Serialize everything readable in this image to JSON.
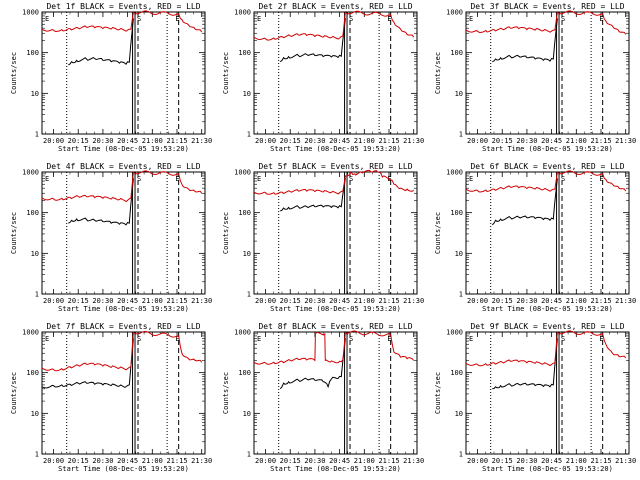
{
  "figure": {
    "background": "#ffffff"
  },
  "chart_data": [
    {
      "type": "line",
      "title": "Det 1f BLACK = Events, RED = LLD",
      "xlabel": "Start Time (08-Dec-05 19:53:20)",
      "ylabel": "Counts/sec",
      "xlim": [
        1193,
        1292
      ],
      "ylim": [
        1,
        1000
      ],
      "yscale": "log",
      "x_tick_labels": [
        "20:00",
        "20:15",
        "20:30",
        "20:45",
        "21:00",
        "21:15",
        "21:30"
      ],
      "x_tick_minutes": [
        1200,
        1215,
        1230,
        1245,
        1260,
        1275,
        1290
      ],
      "y_tick_labels": [
        "1",
        "10",
        "100",
        "1000"
      ],
      "y_tick_values": [
        1,
        10,
        100,
        1000
      ],
      "markers": [
        "E",
        "S",
        "E"
      ],
      "series": [
        {
          "color": "#000000",
          "x": [
            1209,
            1211,
            1214,
            1220,
            1225,
            1230,
            1235,
            1240,
            1244,
            1246,
            1248.5
          ],
          "y": [
            50,
            60,
            65,
            70,
            72,
            65,
            60,
            55,
            52,
            58,
            700
          ]
        },
        {
          "color": "#d00000",
          "x": [
            1193,
            1200,
            1205,
            1210,
            1215,
            1220,
            1225,
            1230,
            1235,
            1240,
            1245,
            1247,
            1248.5,
            1276,
            1278,
            1282,
            1286,
            1290
          ],
          "y": [
            380,
            360,
            370,
            390,
            400,
            420,
            410,
            390,
            380,
            370,
            360,
            380,
            1000,
            900,
            650,
            480,
            380,
            320
          ]
        }
      ]
    },
    {
      "type": "line",
      "title": "Det 2f BLACK = Events, RED = LLD",
      "xlabel": "Start Time (08-Dec-05 19:53:20)",
      "ylabel": "Counts/sec",
      "xlim": [
        1193,
        1292
      ],
      "ylim": [
        1,
        1000
      ],
      "yscale": "log",
      "x_tick_labels": [
        "20:00",
        "20:15",
        "20:30",
        "20:45",
        "21:00",
        "21:15",
        "21:30"
      ],
      "x_tick_minutes": [
        1200,
        1215,
        1230,
        1245,
        1260,
        1275,
        1290
      ],
      "y_tick_labels": [
        "1",
        "10",
        "100",
        "1000"
      ],
      "y_tick_values": [
        1,
        10,
        100,
        1000
      ],
      "markers": [
        "E",
        "S",
        "E"
      ],
      "series": [
        {
          "color": "#000000",
          "x": [
            1209,
            1211,
            1214,
            1220,
            1225,
            1230,
            1235,
            1240,
            1244,
            1246,
            1248.5
          ],
          "y": [
            60,
            75,
            80,
            85,
            90,
            85,
            80,
            78,
            76,
            82,
            700
          ]
        },
        {
          "color": "#d00000",
          "x": [
            1193,
            1200,
            1205,
            1210,
            1215,
            1220,
            1225,
            1230,
            1235,
            1240,
            1245,
            1247,
            1248.5,
            1276,
            1278,
            1282,
            1286,
            1290
          ],
          "y": [
            240,
            220,
            230,
            250,
            260,
            270,
            265,
            250,
            240,
            235,
            230,
            260,
            1000,
            850,
            560,
            380,
            280,
            240
          ]
        }
      ]
    },
    {
      "type": "line",
      "title": "Det 3f BLACK = Events, RED = LLD",
      "xlabel": "Start Time (08-Dec-05 19:53:20)",
      "ylabel": "Counts/sec",
      "xlim": [
        1193,
        1292
      ],
      "ylim": [
        1,
        1000
      ],
      "yscale": "log",
      "x_tick_labels": [
        "20:00",
        "20:15",
        "20:30",
        "20:45",
        "21:00",
        "21:15",
        "21:30"
      ],
      "x_tick_minutes": [
        1200,
        1215,
        1230,
        1245,
        1260,
        1275,
        1290
      ],
      "y_tick_labels": [
        "1",
        "10",
        "100",
        "1000"
      ],
      "y_tick_values": [
        1,
        10,
        100,
        1000
      ],
      "markers": [
        "E",
        "S",
        "E"
      ],
      "series": [
        {
          "color": "#000000",
          "x": [
            1209,
            1211,
            1214,
            1220,
            1225,
            1230,
            1235,
            1240,
            1244,
            1246,
            1248.5
          ],
          "y": [
            60,
            70,
            75,
            80,
            82,
            75,
            70,
            65,
            62,
            70,
            700
          ]
        },
        {
          "color": "#d00000",
          "x": [
            1193,
            1200,
            1205,
            1210,
            1215,
            1220,
            1225,
            1230,
            1235,
            1240,
            1245,
            1247,
            1248.5,
            1276,
            1278,
            1282,
            1286,
            1290
          ],
          "y": [
            360,
            340,
            350,
            370,
            380,
            400,
            390,
            370,
            360,
            350,
            340,
            360,
            1000,
            900,
            600,
            450,
            330,
            280
          ]
        }
      ]
    },
    {
      "type": "line",
      "title": "Det 4f BLACK = Events, RED = LLD",
      "xlabel": "Start Time (08-Dec-05 19:53:20)",
      "ylabel": "Counts/sec",
      "xlim": [
        1193,
        1292
      ],
      "ylim": [
        1,
        1000
      ],
      "yscale": "log",
      "x_tick_labels": [
        "20:00",
        "20:15",
        "20:30",
        "20:45",
        "21:00",
        "21:15",
        "21:30"
      ],
      "x_tick_minutes": [
        1200,
        1215,
        1230,
        1245,
        1260,
        1275,
        1290
      ],
      "y_tick_labels": [
        "1",
        "10",
        "100",
        "1000"
      ],
      "y_tick_values": [
        1,
        10,
        100,
        1000
      ],
      "markers": [
        "E",
        "S",
        "E"
      ],
      "series": [
        {
          "color": "#000000",
          "x": [
            1209,
            1211,
            1214,
            1220,
            1225,
            1230,
            1235,
            1240,
            1244,
            1246,
            1248.5
          ],
          "y": [
            55,
            65,
            70,
            68,
            65,
            60,
            55,
            52,
            50,
            55,
            700
          ]
        },
        {
          "color": "#d00000",
          "x": [
            1193,
            1200,
            1205,
            1210,
            1215,
            1220,
            1225,
            1230,
            1235,
            1240,
            1245,
            1247,
            1248.5,
            1276,
            1278,
            1282,
            1286,
            1290
          ],
          "y": [
            230,
            220,
            225,
            240,
            250,
            245,
            235,
            225,
            215,
            210,
            200,
            230,
            1000,
            900,
            500,
            380,
            330,
            300
          ]
        }
      ]
    },
    {
      "type": "line",
      "title": "Det 5f BLACK = Events, RED = LLD",
      "xlabel": "Start Time (08-Dec-05 19:53:20)",
      "ylabel": "Counts/sec",
      "xlim": [
        1193,
        1292
      ],
      "ylim": [
        1,
        1000
      ],
      "yscale": "log",
      "x_tick_labels": [
        "20:00",
        "20:15",
        "20:30",
        "20:45",
        "21:00",
        "21:15",
        "21:30"
      ],
      "x_tick_minutes": [
        1200,
        1215,
        1230,
        1245,
        1260,
        1275,
        1290
      ],
      "y_tick_labels": [
        "1",
        "10",
        "100",
        "1000"
      ],
      "y_tick_values": [
        1,
        10,
        100,
        1000
      ],
      "markers": [
        "E",
        "S",
        "E"
      ],
      "series": [
        {
          "color": "#000000",
          "x": [
            1209,
            1211,
            1214,
            1220,
            1225,
            1230,
            1235,
            1240,
            1244,
            1246,
            1248.5
          ],
          "y": [
            110,
            130,
            135,
            138,
            140,
            140,
            138,
            135,
            132,
            140,
            700
          ]
        },
        {
          "color": "#d00000",
          "x": [
            1193,
            1200,
            1205,
            1210,
            1215,
            1220,
            1225,
            1230,
            1235,
            1240,
            1245,
            1247,
            1248.5,
            1252,
            1254,
            1258,
            1264,
            1268,
            1269,
            1271,
            1276,
            1278,
            1282,
            1286,
            1290
          ],
          "y": [
            320,
            310,
            310,
            320,
            330,
            340,
            340,
            330,
            320,
            315,
            310,
            340,
            800,
            1000,
            900,
            1000,
            1000,
            1000,
            1000,
            750,
            650,
            500,
            400,
            380,
            360
          ]
        }
      ]
    },
    {
      "type": "line",
      "title": "Det 6f BLACK = Events, RED = LLD",
      "xlabel": "Start Time (08-Dec-05 19:53:20)",
      "ylabel": "Counts/sec",
      "xlim": [
        1193,
        1292
      ],
      "ylim": [
        1,
        1000
      ],
      "yscale": "log",
      "x_tick_labels": [
        "20:00",
        "20:15",
        "20:30",
        "20:45",
        "21:00",
        "21:15",
        "21:30"
      ],
      "x_tick_minutes": [
        1200,
        1215,
        1230,
        1245,
        1260,
        1275,
        1290
      ],
      "y_tick_labels": [
        "1",
        "10",
        "100",
        "1000"
      ],
      "y_tick_values": [
        1,
        10,
        100,
        1000
      ],
      "markers": [
        "E",
        "S",
        "E"
      ],
      "series": [
        {
          "color": "#000000",
          "x": [
            1209,
            1211,
            1214,
            1220,
            1225,
            1230,
            1235,
            1240,
            1244,
            1246,
            1248.5
          ],
          "y": [
            50,
            65,
            70,
            75,
            78,
            75,
            72,
            68,
            65,
            70,
            700
          ]
        },
        {
          "color": "#d00000",
          "x": [
            1193,
            1200,
            1205,
            1210,
            1215,
            1220,
            1225,
            1230,
            1235,
            1240,
            1245,
            1247,
            1248.5,
            1276,
            1278,
            1282,
            1286,
            1290
          ],
          "y": [
            380,
            350,
            360,
            380,
            400,
            420,
            410,
            390,
            380,
            370,
            360,
            380,
            1000,
            900,
            650,
            500,
            400,
            340
          ]
        }
      ]
    },
    {
      "type": "line",
      "title": "Det 7f BLACK = Events, RED = LLD",
      "xlabel": "Start Time (08-Dec-05 19:53:20)",
      "ylabel": "Counts/sec",
      "xlim": [
        1193,
        1292
      ],
      "ylim": [
        1,
        1000
      ],
      "yscale": "log",
      "x_tick_labels": [
        "20:00",
        "20:15",
        "20:30",
        "20:45",
        "21:00",
        "21:15",
        "21:30"
      ],
      "x_tick_minutes": [
        1200,
        1215,
        1230,
        1245,
        1260,
        1275,
        1290
      ],
      "y_tick_labels": [
        "1",
        "10",
        "100",
        "1000"
      ],
      "y_tick_values": [
        1,
        10,
        100,
        1000
      ],
      "markers": [
        "E",
        "S",
        "E"
      ],
      "series": [
        {
          "color": "#000000",
          "x": [
            1193,
            1200,
            1205,
            1210,
            1215,
            1220,
            1225,
            1230,
            1235,
            1240,
            1244,
            1246,
            1248.5
          ],
          "y": [
            45,
            48,
            50,
            52,
            55,
            55,
            52,
            50,
            48,
            47,
            45,
            50,
            700
          ]
        },
        {
          "color": "#d00000",
          "x": [
            1193,
            1200,
            1205,
            1210,
            1215,
            1220,
            1225,
            1230,
            1235,
            1240,
            1245,
            1247,
            1248.5,
            1276,
            1278,
            1282,
            1286,
            1290
          ],
          "y": [
            130,
            120,
            125,
            140,
            150,
            160,
            155,
            145,
            135,
            130,
            125,
            140,
            1000,
            800,
            300,
            220,
            200,
            180
          ]
        }
      ]
    },
    {
      "type": "line",
      "title": "Det 8f BLACK = Events, RED = LLD",
      "xlabel": "Start Time (08-Dec-05 19:53:20)",
      "ylabel": "Counts/sec",
      "xlim": [
        1193,
        1292
      ],
      "ylim": [
        1,
        1000
      ],
      "yscale": "log",
      "x_tick_labels": [
        "20:00",
        "20:15",
        "20:30",
        "20:45",
        "21:00",
        "21:15",
        "21:30"
      ],
      "x_tick_minutes": [
        1200,
        1215,
        1230,
        1245,
        1260,
        1275,
        1290
      ],
      "y_tick_labels": [
        "1",
        "10",
        "100",
        "1000"
      ],
      "y_tick_values": [
        1,
        10,
        100,
        1000
      ],
      "markers": [
        "E",
        "S",
        "E"
      ],
      "series": [
        {
          "color": "#000000",
          "x": [
            1209,
            1211,
            1214,
            1220,
            1225,
            1230,
            1235,
            1238,
            1240,
            1244,
            1246,
            1248.5
          ],
          "y": [
            40,
            55,
            60,
            65,
            70,
            65,
            60,
            45,
            70,
            72,
            80,
            700
          ]
        },
        {
          "color": "#d00000",
          "x": [
            1193,
            1200,
            1205,
            1210,
            1215,
            1220,
            1225,
            1230,
            1230.3,
            1236,
            1236.3,
            1240,
            1245,
            1247,
            1248.5,
            1276,
            1278,
            1282,
            1286,
            1290
          ],
          "y": [
            180,
            175,
            180,
            190,
            200,
            210,
            205,
            200,
            900,
            900,
            200,
            195,
            190,
            210,
            1000,
            850,
            320,
            240,
            220,
            200
          ]
        }
      ]
    },
    {
      "type": "line",
      "title": "Det 9f BLACK = Events, RED = LLD",
      "xlabel": "Start Time (08-Dec-05 19:53:20)",
      "ylabel": "Counts/sec",
      "xlim": [
        1193,
        1292
      ],
      "ylim": [
        1,
        1000
      ],
      "yscale": "log",
      "x_tick_labels": [
        "20:00",
        "20:15",
        "20:30",
        "20:45",
        "21:00",
        "21:15",
        "21:30"
      ],
      "x_tick_minutes": [
        1200,
        1215,
        1230,
        1245,
        1260,
        1275,
        1290
      ],
      "y_tick_labels": [
        "1",
        "10",
        "100",
        "1000"
      ],
      "y_tick_values": [
        1,
        10,
        100,
        1000
      ],
      "markers": [
        "E",
        "S",
        "E"
      ],
      "series": [
        {
          "color": "#000000",
          "x": [
            1209,
            1211,
            1214,
            1220,
            1225,
            1230,
            1235,
            1240,
            1244,
            1246,
            1248.5
          ],
          "y": [
            40,
            45,
            48,
            50,
            52,
            50,
            48,
            46,
            45,
            50,
            700
          ]
        },
        {
          "color": "#d00000",
          "x": [
            1193,
            1200,
            1205,
            1210,
            1215,
            1220,
            1225,
            1230,
            1235,
            1240,
            1245,
            1247,
            1248.5,
            1276,
            1278,
            1282,
            1286,
            1290
          ],
          "y": [
            170,
            160,
            165,
            175,
            180,
            190,
            185,
            175,
            170,
            165,
            160,
            175,
            1000,
            900,
            500,
            300,
            250,
            230
          ]
        }
      ]
    }
  ]
}
